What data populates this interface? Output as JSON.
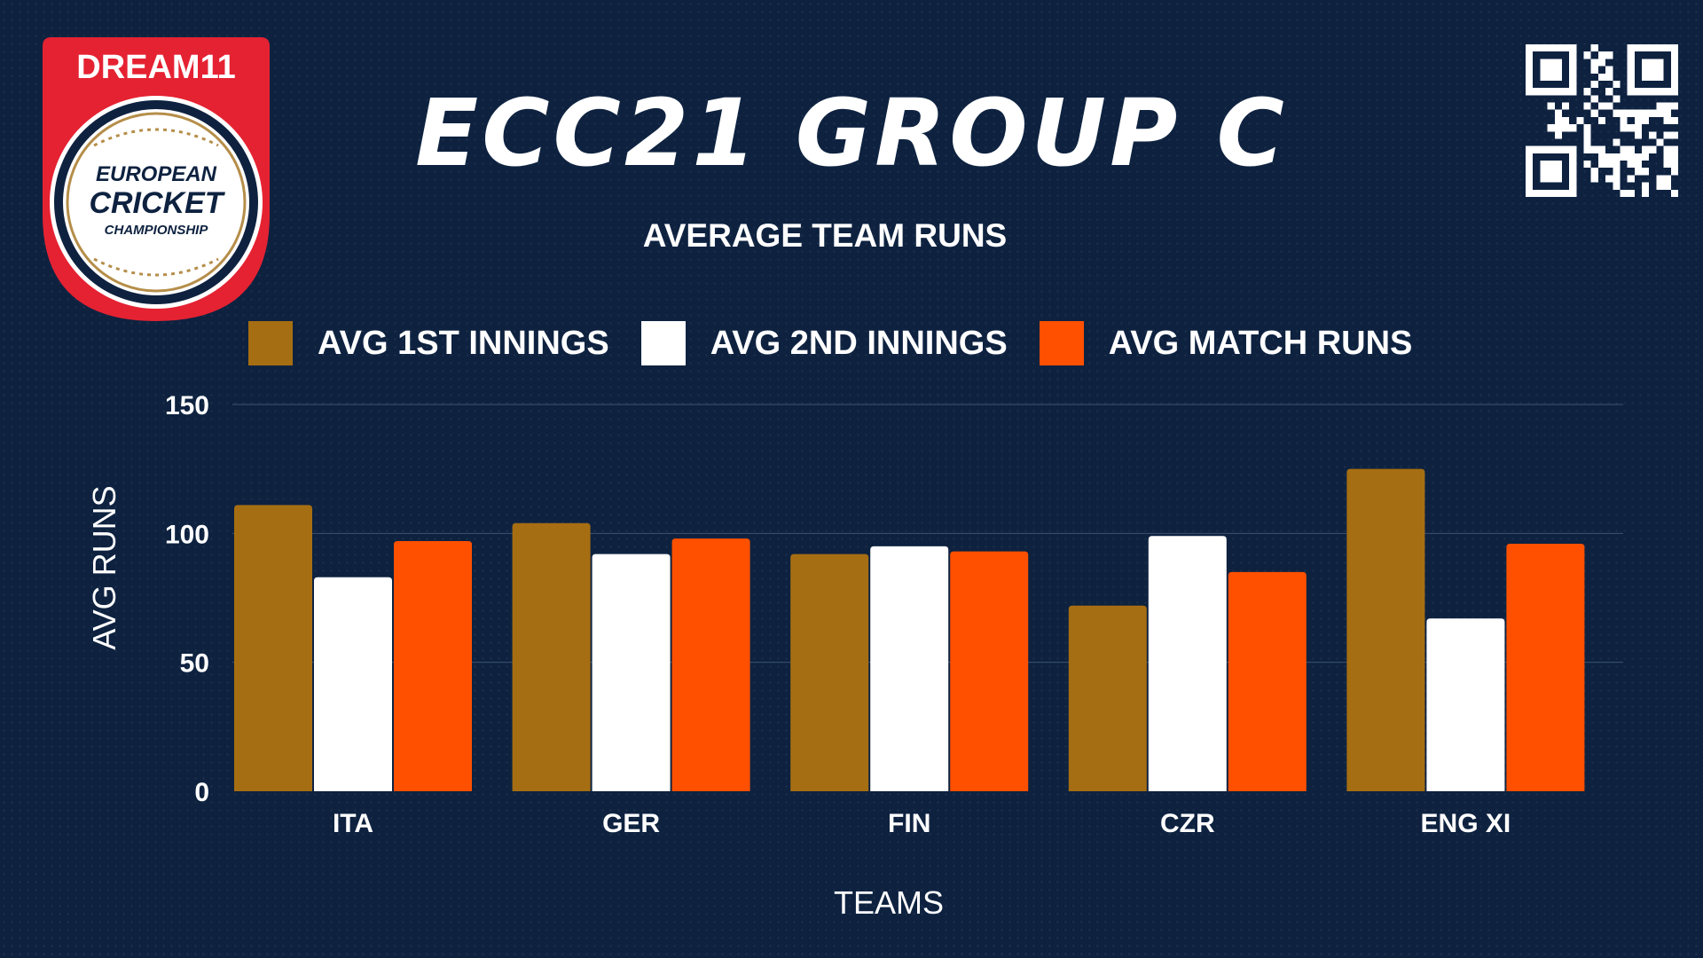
{
  "header": {
    "title": "ECC21 GROUP C",
    "logo_wordmark": "DREAM11",
    "logo_line1": "EUROPEAN",
    "logo_line2": "CRICKET",
    "logo_line3": "CHAMPIONSHIP"
  },
  "chart_data": {
    "type": "bar",
    "title": "ECC21 GROUP C",
    "subtitle": "AVERAGE TEAM RUNS",
    "xlabel": "TEAMS",
    "ylabel": "AVG RUNS",
    "ylim": [
      0,
      150
    ],
    "yticks": [
      0,
      50,
      100,
      150
    ],
    "grid": true,
    "legend_position": "top",
    "categories": [
      "ITA",
      "GER",
      "FIN",
      "CZR",
      "ENG XI"
    ],
    "series": [
      {
        "name": "AVG 1ST INNINGS",
        "color": "#a66e12",
        "values": [
          111,
          104,
          92,
          72,
          125
        ]
      },
      {
        "name": "AVG 2ND INNINGS",
        "color": "#ffffff",
        "values": [
          83,
          92,
          95,
          99,
          67
        ]
      },
      {
        "name": "AVG MATCH RUNS",
        "color": "#ff5000",
        "values": [
          97,
          98,
          93,
          85,
          96
        ]
      }
    ]
  },
  "colors": {
    "background": "#0e2240",
    "grid": "#3c5272",
    "logo_red": "#e52232",
    "logo_gold": "#b58e4a"
  }
}
